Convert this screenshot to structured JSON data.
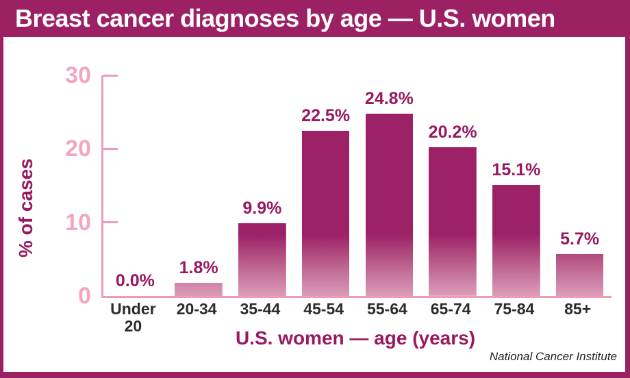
{
  "header": {
    "title": "Breast cancer diagnoses by age — U.S. women"
  },
  "footer": {
    "source": "National Cancer Institute"
  },
  "chart_data": {
    "type": "bar",
    "title": "Breast cancer diagnoses by age — U.S. women",
    "categories": [
      "Under 20",
      "20-34",
      "35-44",
      "45-54",
      "55-64",
      "65-74",
      "75-84",
      "85+"
    ],
    "values": [
      0.0,
      1.8,
      9.9,
      22.5,
      24.8,
      20.2,
      15.1,
      5.7
    ],
    "value_labels": [
      "0.0%",
      "1.8%",
      "9.9%",
      "22.5%",
      "24.8%",
      "20.2%",
      "15.1%",
      "5.7%"
    ],
    "xlabel": "U.S. women — age (years)",
    "ylabel": "% of cases",
    "ylim": [
      0,
      30
    ],
    "yticks": [
      0,
      10,
      20,
      30
    ],
    "grid": false,
    "legend": false,
    "source": "National Cancer Institute",
    "colors": {
      "accent": "#9c2164",
      "title_text": "#ffffff",
      "bar_top": "#9c2166",
      "bar_mid": "#c06a92",
      "bar_bottom": "#dc9cba",
      "axis": "#ee9ab8",
      "tick_label": "#f2a6c1",
      "value_label": "#98195f",
      "category_label": "#2d2a2b"
    }
  }
}
